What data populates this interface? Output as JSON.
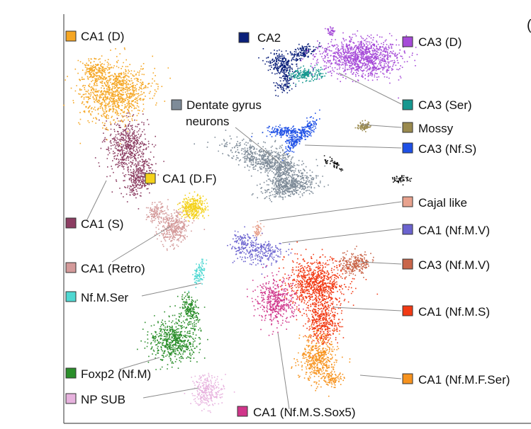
{
  "figure": {
    "corner_mark": "(",
    "clusters": [
      {
        "name": "CA1 (D)",
        "color": "#F5A623"
      },
      {
        "name": "CA2",
        "color": "#0A1F7A"
      },
      {
        "name": "CA3 (D)",
        "color": "#A64BD8"
      },
      {
        "name": "Dentate gyrus",
        "name_line2": "neurons",
        "color": "#7E8B98"
      },
      {
        "name": "CA3 (Ser)",
        "color": "#16978F"
      },
      {
        "name": "Mossy",
        "color": "#9A8A4E"
      },
      {
        "name": "CA3 (Nf.S)",
        "color": "#1E50E6"
      },
      {
        "name": "CA1 (D.F)",
        "color": "#F4D21C"
      },
      {
        "name": "Cajal like",
        "color": "#E8A28E"
      },
      {
        "name": "CA1 (S)",
        "color": "#8C3D62"
      },
      {
        "name": "CA1 (Nf.M.V)",
        "color": "#6B63CF"
      },
      {
        "name": "CA3 (Nf.M.V)",
        "color": "#C9664A"
      },
      {
        "name": "CA1 (Retro)",
        "color": "#D49A9A"
      },
      {
        "name": "Nf.M.Ser",
        "color": "#4FD8D2"
      },
      {
        "name": "CA1 (Nf.M.S)",
        "color": "#F23A14"
      },
      {
        "name": "Foxp2 (Nf.M)",
        "color": "#2A8E2A"
      },
      {
        "name": "CA1 (Nf.M.F.Ser)",
        "color": "#F7931E"
      },
      {
        "name": "NP SUB",
        "color": "#E7B2DE"
      },
      {
        "name": "CA1 (Nf.M.S.Sox5)",
        "color": "#D0358A"
      },
      {
        "name": "",
        "color": "#111111"
      }
    ]
  }
}
